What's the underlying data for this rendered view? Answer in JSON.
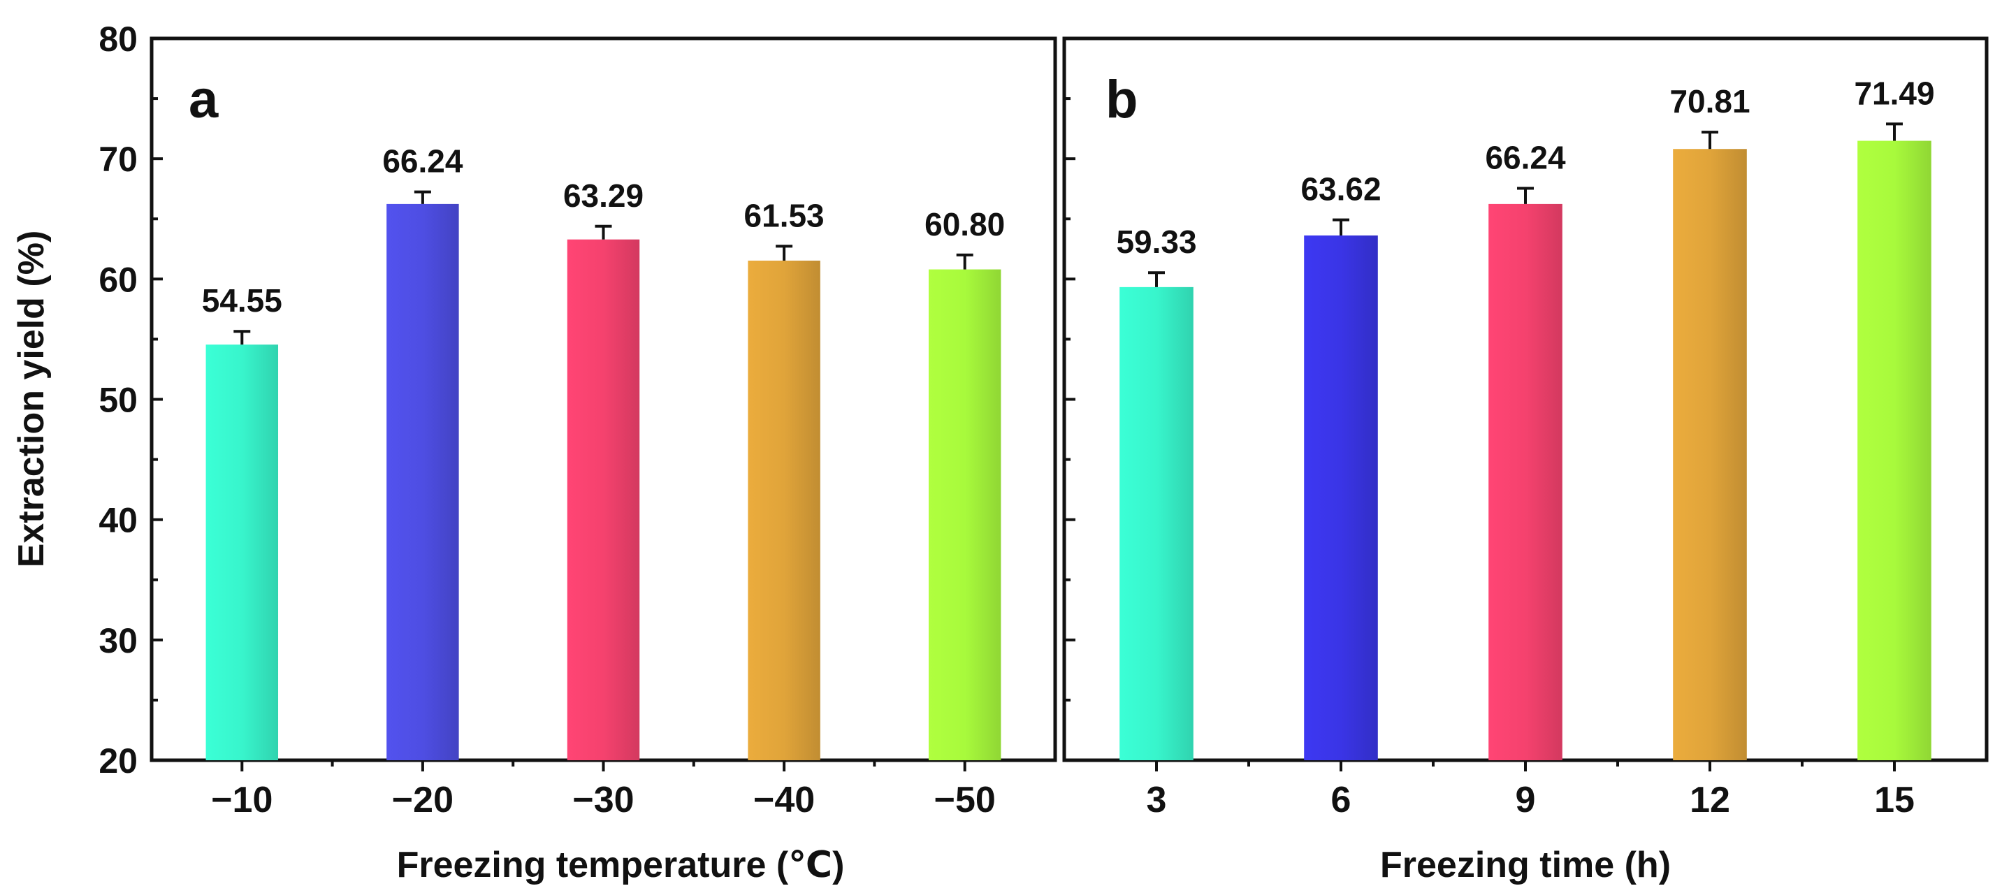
{
  "figure": {
    "ylabel": "Extraction yield (%)"
  },
  "chart_data": [
    {
      "type": "bar",
      "panel_label": "a",
      "xlabel": "Freezing temperature (℃)",
      "ylabel": "Extraction yield (%)",
      "categories": [
        "−10",
        "−20",
        "−30",
        "−40",
        "−50"
      ],
      "values": [
        54.55,
        66.24,
        63.29,
        61.53,
        60.8
      ],
      "value_labels": [
        "54.55",
        "66.24",
        "63.29",
        "61.53",
        "60.80"
      ],
      "errors": [
        1.1,
        1.0,
        1.1,
        1.2,
        1.2
      ],
      "colors": [
        "#38f5cc",
        "#4e4ee3",
        "#f5426e",
        "#e0a43a",
        "#a8fa3c"
      ],
      "ylim": [
        20,
        80
      ],
      "yticks": [
        20,
        30,
        40,
        50,
        60,
        70,
        80
      ],
      "ytick_labels": [
        "20",
        "30",
        "40",
        "50",
        "60",
        "70",
        "80"
      ],
      "grid": false,
      "legend": false
    },
    {
      "type": "bar",
      "panel_label": "b",
      "xlabel": "Freezing time (h)",
      "categories": [
        "3",
        "6",
        "9",
        "12",
        "15"
      ],
      "values": [
        59.33,
        63.62,
        66.24,
        70.81,
        71.49
      ],
      "value_labels": [
        "59.33",
        "63.62",
        "66.24",
        "70.81",
        "71.49"
      ],
      "errors": [
        1.2,
        1.3,
        1.3,
        1.4,
        1.4
      ],
      "colors": [
        "#38f5cc",
        "#3a35e6",
        "#f5426e",
        "#e0a43a",
        "#a8fa3c"
      ],
      "ylim": [
        20,
        80
      ],
      "yticks": [
        20,
        30,
        40,
        50,
        60,
        70,
        80
      ],
      "grid": false,
      "legend": false
    }
  ]
}
